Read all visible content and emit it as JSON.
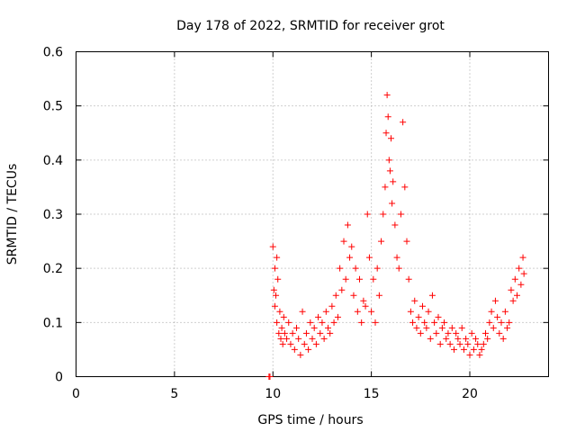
{
  "chart_data": {
    "type": "scatter",
    "title": "Day 178 of 2022, SRMTID for receiver grot",
    "xlabel": "GPS time / hours",
    "ylabel": "SRMTID / TECUs",
    "xlim": [
      0,
      24
    ],
    "ylim": [
      0,
      0.6
    ],
    "xticks": [
      0,
      5,
      10,
      15,
      20
    ],
    "xtick_labels": [
      "0",
      "5",
      "10",
      "15",
      "20"
    ],
    "yticks": [
      0,
      0.1,
      0.2,
      0.3,
      0.4,
      0.5,
      0.6
    ],
    "ytick_labels": [
      "0",
      "0.1",
      "0.2",
      "0.3",
      "0.4",
      "0.5",
      "0.6"
    ],
    "grid": true,
    "marker": "+",
    "series": [
      {
        "name": "SRMTID",
        "color": "#ff0000",
        "x": [
          9.8,
          9.85,
          10.0,
          10.05,
          10.1,
          10.1,
          10.15,
          10.2,
          10.2,
          10.25,
          10.3,
          10.35,
          10.4,
          10.45,
          10.5,
          10.55,
          10.6,
          10.7,
          10.8,
          10.9,
          11.0,
          11.1,
          11.2,
          11.3,
          11.4,
          11.5,
          11.6,
          11.7,
          11.8,
          11.9,
          12.0,
          12.1,
          12.2,
          12.3,
          12.4,
          12.5,
          12.6,
          12.7,
          12.8,
          12.9,
          13.0,
          13.1,
          13.2,
          13.3,
          13.4,
          13.5,
          13.6,
          13.7,
          13.8,
          13.9,
          14.0,
          14.1,
          14.2,
          14.3,
          14.4,
          14.5,
          14.6,
          14.7,
          14.8,
          14.9,
          15.0,
          15.1,
          15.2,
          15.3,
          15.4,
          15.5,
          15.6,
          15.7,
          15.75,
          15.8,
          15.85,
          15.9,
          15.95,
          16.0,
          16.05,
          16.1,
          16.2,
          16.3,
          16.4,
          16.5,
          16.6,
          16.7,
          16.8,
          16.9,
          17.0,
          17.1,
          17.2,
          17.3,
          17.4,
          17.5,
          17.6,
          17.7,
          17.8,
          17.9,
          18.0,
          18.1,
          18.2,
          18.3,
          18.4,
          18.5,
          18.6,
          18.7,
          18.8,
          18.9,
          19.0,
          19.1,
          19.2,
          19.3,
          19.4,
          19.5,
          19.6,
          19.7,
          19.8,
          19.9,
          20.0,
          20.1,
          20.2,
          20.3,
          20.4,
          20.5,
          20.6,
          20.7,
          20.8,
          20.9,
          21.0,
          21.1,
          21.2,
          21.3,
          21.4,
          21.5,
          21.6,
          21.7,
          21.8,
          21.9,
          22.0,
          22.1,
          22.2,
          22.3,
          22.4,
          22.5,
          22.6,
          22.7,
          22.75
        ],
        "y": [
          0.0,
          0.0,
          0.24,
          0.16,
          0.13,
          0.2,
          0.15,
          0.22,
          0.1,
          0.18,
          0.08,
          0.12,
          0.07,
          0.09,
          0.06,
          0.11,
          0.08,
          0.07,
          0.1,
          0.06,
          0.08,
          0.05,
          0.09,
          0.07,
          0.04,
          0.12,
          0.06,
          0.08,
          0.05,
          0.1,
          0.07,
          0.09,
          0.06,
          0.11,
          0.08,
          0.1,
          0.07,
          0.12,
          0.09,
          0.08,
          0.13,
          0.1,
          0.15,
          0.11,
          0.2,
          0.16,
          0.25,
          0.18,
          0.28,
          0.22,
          0.24,
          0.15,
          0.2,
          0.12,
          0.18,
          0.1,
          0.14,
          0.13,
          0.3,
          0.22,
          0.12,
          0.18,
          0.1,
          0.2,
          0.15,
          0.25,
          0.3,
          0.35,
          0.45,
          0.52,
          0.48,
          0.4,
          0.38,
          0.44,
          0.32,
          0.36,
          0.28,
          0.22,
          0.2,
          0.3,
          0.47,
          0.35,
          0.25,
          0.18,
          0.12,
          0.1,
          0.14,
          0.09,
          0.11,
          0.08,
          0.13,
          0.1,
          0.09,
          0.12,
          0.07,
          0.15,
          0.1,
          0.08,
          0.11,
          0.06,
          0.09,
          0.1,
          0.07,
          0.08,
          0.06,
          0.09,
          0.05,
          0.08,
          0.07,
          0.06,
          0.09,
          0.05,
          0.07,
          0.06,
          0.04,
          0.08,
          0.05,
          0.07,
          0.06,
          0.04,
          0.05,
          0.06,
          0.08,
          0.07,
          0.1,
          0.12,
          0.09,
          0.14,
          0.11,
          0.08,
          0.1,
          0.07,
          0.12,
          0.09,
          0.1,
          0.16,
          0.14,
          0.18,
          0.15,
          0.2,
          0.17,
          0.22,
          0.19
        ]
      }
    ]
  }
}
